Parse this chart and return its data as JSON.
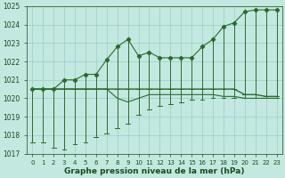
{
  "hours": [
    0,
    1,
    2,
    3,
    4,
    5,
    6,
    7,
    8,
    9,
    10,
    11,
    12,
    13,
    14,
    15,
    16,
    17,
    18,
    19,
    20,
    21,
    22,
    23
  ],
  "current": [
    1020.5,
    1020.5,
    1020.5,
    1020.5,
    1020.5,
    1020.5,
    1020.5,
    1020.5,
    1020.5,
    1020.5,
    1020.5,
    1020.5,
    1020.5,
    1020.5,
    1020.5,
    1020.5,
    1020.5,
    1020.5,
    1020.5,
    1020.5,
    1020.2,
    1020.2,
    1020.1,
    1020.1
  ],
  "upper_trend": [
    1020.5,
    1020.5,
    1020.5,
    1021.0,
    1021.0,
    1021.3,
    1021.3,
    1022.1,
    1022.8,
    1023.2,
    1022.3,
    1022.5,
    1022.2,
    1022.2,
    1022.2,
    1022.2,
    1022.8,
    1023.2,
    1023.9,
    1024.1,
    1024.7,
    1024.8,
    1024.8,
    1024.8
  ],
  "lower_trend": [
    1020.5,
    1020.5,
    1020.5,
    1020.5,
    1020.5,
    1020.5,
    1020.5,
    1020.5,
    1020.0,
    1019.8,
    1020.0,
    1020.2,
    1020.2,
    1020.2,
    1020.2,
    1020.2,
    1020.2,
    1020.2,
    1020.1,
    1020.1,
    1020.0,
    1020.0,
    1020.0,
    1020.0
  ],
  "bar_top": [
    1020.5,
    1020.5,
    1020.5,
    1021.0,
    1021.0,
    1021.3,
    1021.3,
    1022.1,
    1022.8,
    1023.2,
    1022.3,
    1022.5,
    1022.2,
    1022.2,
    1022.2,
    1022.2,
    1022.8,
    1023.2,
    1023.9,
    1024.1,
    1024.7,
    1024.8,
    1024.8,
    1024.8
  ],
  "bar_bottom": [
    1017.6,
    1017.6,
    1017.3,
    1017.2,
    1017.5,
    1017.6,
    1017.9,
    1018.1,
    1018.4,
    1018.6,
    1019.1,
    1019.4,
    1019.6,
    1019.7,
    1019.8,
    1019.9,
    1019.9,
    1020.0,
    1020.0,
    1020.0,
    1020.0,
    1020.0,
    1020.0,
    1020.0
  ],
  "ylim": [
    1017,
    1025
  ],
  "xlim": [
    -0.5,
    23.5
  ],
  "yticks": [
    1017,
    1018,
    1019,
    1020,
    1021,
    1022,
    1023,
    1024,
    1025
  ],
  "xticks": [
    0,
    1,
    2,
    3,
    4,
    5,
    6,
    7,
    8,
    9,
    10,
    11,
    12,
    13,
    14,
    15,
    16,
    17,
    18,
    19,
    20,
    21,
    22,
    23
  ],
  "xlabel": "Graphe pression niveau de la mer (hPa)",
  "line_color": "#2d6a2d",
  "bg_color": "#c2e8e0",
  "grid_color": "#9ecec8",
  "text_color": "#1a4a1a"
}
